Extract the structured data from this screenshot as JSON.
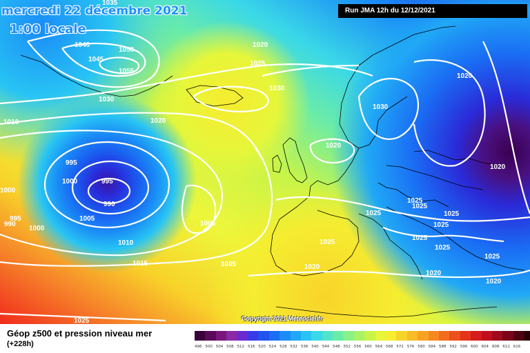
{
  "map": {
    "date_line": "mercredi 22 décembre 2021",
    "time_line": "1:00 locale",
    "run_info": "Run JMA 12h du 12/12/2021",
    "copyright": "Copyright 2021 Meteociel.fr",
    "title": "Géop z500 et pression niveau mer",
    "subtitle": "(+228h)",
    "isobar_labels": [
      "1035",
      "1040",
      "1045",
      "1050",
      "1055",
      "1030",
      "1010",
      "1020",
      "1025",
      "1030",
      "1020",
      "995",
      "1000",
      "995",
      "990",
      "1000",
      "995",
      "990",
      "1000",
      "1005",
      "1010",
      "1015",
      "1005",
      "1005",
      "1020",
      "1030",
      "1020",
      "1025",
      "1025",
      "1025",
      "1025",
      "1025",
      "1025",
      "1025",
      "1025",
      "1020",
      "1020",
      "1025",
      "1020",
      "1020",
      "1025"
    ],
    "color_scale": [
      "#3a003a",
      "#5a0a5a",
      "#7a167a",
      "#8a2aa8",
      "#6a2ad0",
      "#3a3ae8",
      "#2252f0",
      "#1a6ef4",
      "#1a8cf6",
      "#20a8f6",
      "#28c4f4",
      "#3ad8e8",
      "#50e4cc",
      "#6aeca8",
      "#8af088",
      "#a8f268",
      "#c8f448",
      "#e6f63a",
      "#f6ec30",
      "#f8d42a",
      "#f8bc26",
      "#f8a222",
      "#f68820",
      "#f26c1e",
      "#ec501c",
      "#e4341a",
      "#d61c1c",
      "#c0101e",
      "#a00a1e",
      "#7a0618",
      "#500410",
      "#2a0206",
      "#000000"
    ],
    "scale_values": [
      "496",
      "500",
      "504",
      "508",
      "512",
      "516",
      "520",
      "524",
      "528",
      "532",
      "536",
      "540",
      "544",
      "548",
      "552",
      "556",
      "560",
      "564",
      "568",
      "572",
      "576",
      "580",
      "584",
      "588",
      "592",
      "596",
      "600",
      "604",
      "608",
      "612",
      "616"
    ]
  }
}
